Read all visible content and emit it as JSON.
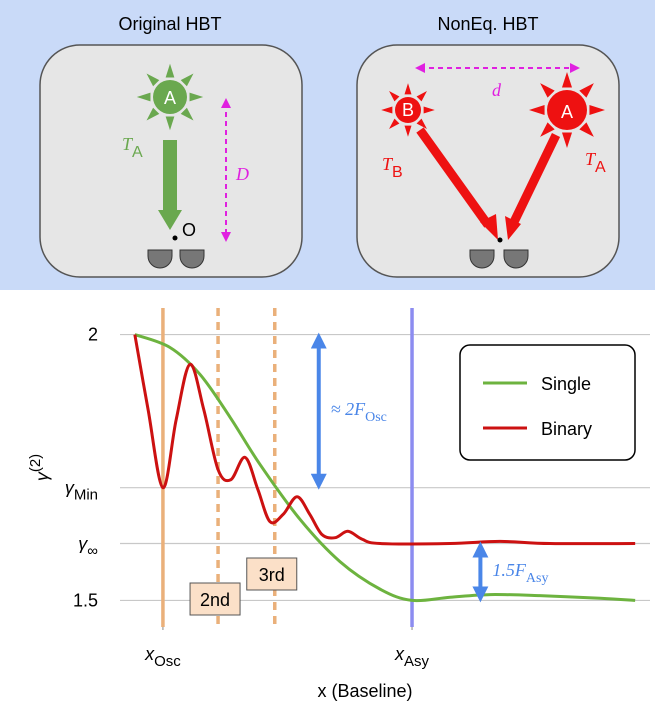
{
  "diagram": {
    "left": {
      "title": "Original HBT",
      "star": "A",
      "temp": "T",
      "temp_sub": "A",
      "distance": "D",
      "origin": "O"
    },
    "right": {
      "title": "NonEq. HBT",
      "star_b": "B",
      "temp_b": "T",
      "temp_b_sub": "B",
      "star_a": "A",
      "temp_a": "T",
      "temp_a_sub": "A",
      "distance": "d"
    }
  },
  "chart_data": {
    "type": "line",
    "y_label": "γ",
    "y_label_sup": "(2)",
    "x_label": "x (Baseline)",
    "xlim": [
      0,
      100
    ],
    "ylim": [
      1.45,
      2.05
    ],
    "xticks": [
      {
        "value": 8.1,
        "label": "x",
        "sub": "Osc"
      },
      {
        "value": 55.1,
        "label": "x",
        "sub": "Asy"
      }
    ],
    "yticks": [
      2,
      {
        "value": 1.712,
        "label": "γ",
        "sub": "Min"
      },
      {
        "value": 1.607,
        "label": "γ",
        "sub": "∞"
      },
      1.5
    ],
    "grid": true,
    "legend": "upper right",
    "series": [
      {
        "name": "Single",
        "color": "#6db33f",
        "x": [
          2.8,
          9.4,
          15.1,
          20.8,
          26.4,
          34.0,
          41.5,
          49.1,
          55.1,
          62.3,
          69.8,
          79.2,
          90.6,
          97.2
        ],
        "values": [
          2.0,
          1.976,
          1.925,
          1.844,
          1.756,
          1.652,
          1.573,
          1.521,
          1.5,
          1.506,
          1.511,
          1.509,
          1.504,
          1.5
        ]
      },
      {
        "name": "Binary",
        "color": "#cc1111",
        "x": [
          2.8,
          5.3,
          8.1,
          10.6,
          13.2,
          15.8,
          18.5,
          20.9,
          23.6,
          26.0,
          28.3,
          30.8,
          33.4,
          35.8,
          38.1,
          40.6,
          43.0,
          45.7,
          49.1,
          62.3,
          71.7,
          81.1,
          97.2
        ],
        "values": [
          2.0,
          1.859,
          1.712,
          1.84,
          1.944,
          1.859,
          1.746,
          1.727,
          1.769,
          1.709,
          1.648,
          1.662,
          1.695,
          1.662,
          1.624,
          1.618,
          1.63,
          1.615,
          1.607,
          1.607,
          1.611,
          1.607,
          1.607
        ]
      }
    ],
    "vlines": [
      {
        "x": 8.1,
        "color": "#eab07a",
        "dashed": false
      },
      {
        "x": 18.5,
        "color": "#eab07a",
        "dashed": true,
        "label": "2nd"
      },
      {
        "x": 29.2,
        "color": "#eab07a",
        "dashed": true,
        "label": "3rd"
      },
      {
        "x": 55.1,
        "color": "#8c8cf0",
        "dashed": false
      }
    ],
    "annotations": [
      {
        "text": "≈ 2F",
        "sub": "Osc",
        "x": 37.5,
        "y": [
          2.0,
          1.712
        ],
        "color": "#4a86e8"
      },
      {
        "text": "1.5F",
        "sub": "Asy",
        "x": 68,
        "y": [
          1.607,
          1.5
        ],
        "color": "#4a86e8"
      }
    ]
  }
}
